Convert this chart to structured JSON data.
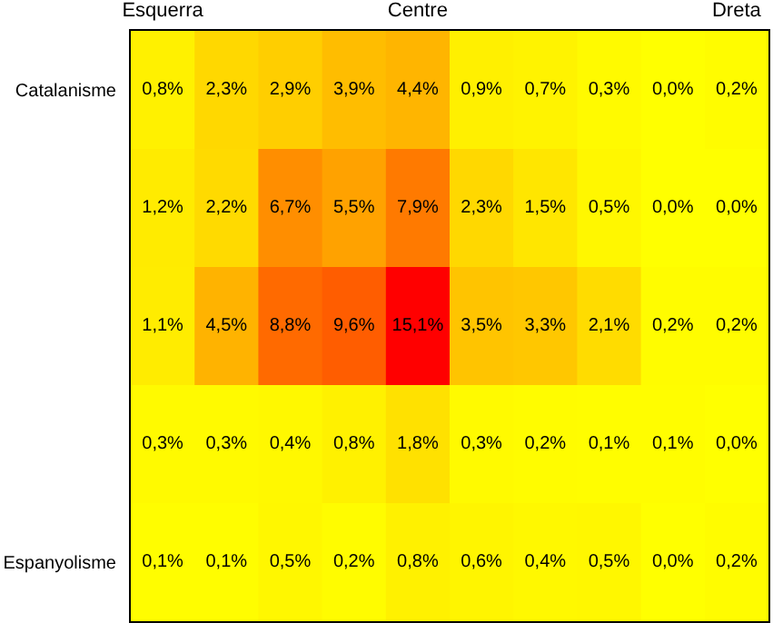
{
  "chart_data": {
    "type": "heatmap",
    "categories": [
      "Esquerra",
      null,
      null,
      null,
      "Centre",
      null,
      null,
      null,
      null,
      "Dreta"
    ],
    "y_categories": [
      "Catalanisme",
      null,
      null,
      null,
      "Espanyolisme"
    ],
    "cells": [
      [
        0.8,
        2.3,
        2.9,
        3.9,
        4.4,
        0.9,
        0.7,
        0.3,
        0.0,
        0.2
      ],
      [
        1.2,
        2.2,
        6.7,
        5.5,
        7.9,
        2.3,
        1.5,
        0.5,
        0.0,
        0.0
      ],
      [
        1.1,
        4.5,
        8.8,
        9.6,
        15.1,
        3.5,
        3.3,
        2.1,
        0.2,
        0.2
      ],
      [
        0.3,
        0.3,
        0.4,
        0.8,
        1.8,
        0.3,
        0.2,
        0.1,
        0.1,
        0.0
      ],
      [
        0.1,
        0.1,
        0.5,
        0.2,
        0.8,
        0.6,
        0.4,
        0.5,
        0.0,
        0.2
      ]
    ],
    "cell_labels": [
      [
        "0,8%",
        "2,3%",
        "2,9%",
        "3,9%",
        "4,4%",
        "0,9%",
        "0,7%",
        "0,3%",
        "0,0%",
        "0,2%"
      ],
      [
        "1,2%",
        "2,2%",
        "6,7%",
        "5,5%",
        "7,9%",
        "2,3%",
        "1,5%",
        "0,5%",
        "0,0%",
        "0,0%"
      ],
      [
        "1,1%",
        "4,5%",
        "8,8%",
        "9,6%",
        "15,1%",
        "3,5%",
        "3,3%",
        "2,1%",
        "0,2%",
        "0,2%"
      ],
      [
        "0,3%",
        "0,3%",
        "0,4%",
        "0,8%",
        "1,8%",
        "0,3%",
        "0,2%",
        "0,1%",
        "0,1%",
        "0,0%"
      ],
      [
        "0,1%",
        "0,1%",
        "0,5%",
        "0,2%",
        "0,8%",
        "0,6%",
        "0,4%",
        "0,5%",
        "0,0%",
        "0,2%"
      ]
    ]
  }
}
